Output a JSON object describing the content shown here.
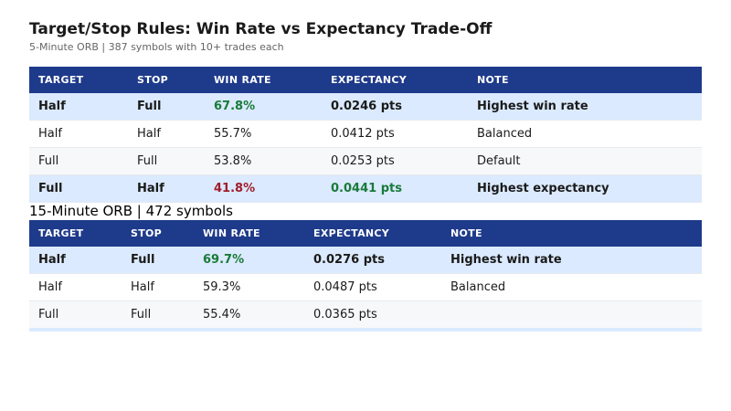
{
  "title": "Target/Stop Rules: Win Rate vs Expectancy Trade-Off",
  "subtitle": "5-Minute ORB | 387 symbols with 10+ trades each",
  "table1": {
    "headers": [
      "TARGET",
      "STOP",
      "WIN RATE",
      "EXPECTANCY",
      "NOTE"
    ],
    "rows": [
      {
        "target": "Half",
        "stop": "Full",
        "win_rate": "67.8%",
        "expectancy": "0.0246 pts",
        "note": "Highest win rate"
      },
      {
        "target": "Half",
        "stop": "Half",
        "win_rate": "55.7%",
        "expectancy": "0.0412 pts",
        "note": "Balanced"
      },
      {
        "target": "Full",
        "stop": "Full",
        "win_rate": "53.8%",
        "expectancy": "0.0253 pts",
        "note": "Default"
      },
      {
        "target": "Full",
        "stop": "Half",
        "win_rate": "41.8%",
        "expectancy": "0.0441 pts",
        "note": "Highest expectancy"
      }
    ]
  },
  "section2_title": "15-Minute ORB | 472 symbols",
  "table2": {
    "headers": [
      "TARGET",
      "STOP",
      "WIN RATE",
      "EXPECTANCY",
      "NOTE"
    ],
    "rows": [
      {
        "target": "Half",
        "stop": "Full",
        "win_rate": "69.7%",
        "expectancy": "0.0276 pts",
        "note": "Highest win rate"
      },
      {
        "target": "Half",
        "stop": "Half",
        "win_rate": "59.3%",
        "expectancy": "0.0487 pts",
        "note": "Balanced"
      },
      {
        "target": "Full",
        "stop": "Full",
        "win_rate": "55.4%",
        "expectancy": "0.0365 pts",
        "note": ""
      }
    ]
  },
  "colors": {
    "header_bg": "#1e3a8a",
    "highlight_row": "#dbeafe",
    "positive": "#1a7a3a",
    "negative": "#a11d2a"
  }
}
